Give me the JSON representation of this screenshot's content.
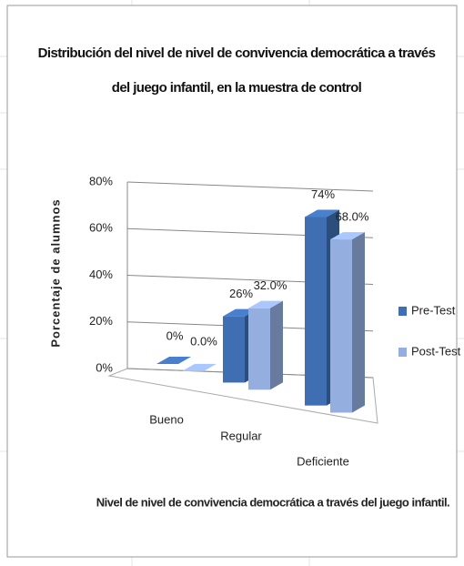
{
  "chart_data": {
    "type": "bar3d",
    "title": "Distribución del nivel de nivel de convivencia democrática a través del juego infantil, en la muestra de control",
    "ylabel": "Porcentaje de alumnos",
    "xlabel": "Nivel de nivel de convivencia  democrática a través del juego infantil.",
    "categories": [
      "Bueno",
      "Regular",
      "Deficiente"
    ],
    "series": [
      {
        "name": "Pre-Test",
        "color": "#3f6fb2",
        "values": [
          0,
          26,
          74
        ],
        "value_labels": [
          "0%",
          "26%",
          "74%"
        ]
      },
      {
        "name": "Post-Test",
        "color": "#94aee0",
        "values": [
          0,
          32,
          68
        ],
        "value_labels": [
          "0.0%",
          "32.0%",
          "68.0%"
        ]
      }
    ],
    "ylim": [
      0,
      80
    ],
    "yticks": [
      {
        "value": 0,
        "label": "0%"
      },
      {
        "value": 20,
        "label": "20%"
      },
      {
        "value": 40,
        "label": "40%"
      },
      {
        "value": 60,
        "label": "60%"
      },
      {
        "value": 80,
        "label": "80%"
      }
    ],
    "grid": true,
    "legend": "right"
  }
}
